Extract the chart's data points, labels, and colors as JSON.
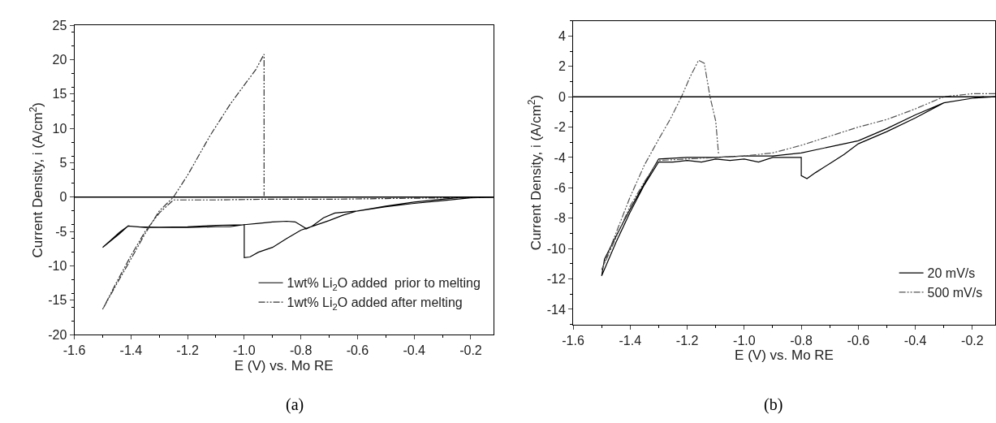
{
  "chart_data": [
    {
      "type": "line",
      "xlabel": "E (V) vs. Mo RE",
      "ylabel": "Current Density, i (A/cm$^{2}$)",
      "xlim": [
        -1.6,
        -0.12
      ],
      "xticks": [
        -1.6,
        -1.4,
        -1.2,
        {
          "value": -1.0,
          "label": "-1.0"
        },
        -0.8,
        -0.6,
        -0.4,
        -0.2
      ],
      "ylim": [
        -20,
        25
      ],
      "yticks": [
        -20,
        -15,
        -10,
        -5,
        0,
        5,
        10,
        15,
        20,
        25
      ],
      "legend": "bottom right",
      "marker": "none",
      "ref_lines": [
        {
          "axis": "y",
          "value": 0,
          "color": "#000000",
          "line_style": "solid"
        }
      ],
      "annotations": [
        "(a)"
      ],
      "series": [
        {
          "name": "1wt% Li$_{2}$O added  prior to melting",
          "color": "#000000",
          "line_style": "solid",
          "x": [
            -0.12,
            -0.2,
            -0.3,
            -0.4,
            -0.5,
            -0.6,
            -0.65,
            -0.7,
            -0.75,
            -0.8,
            -0.85,
            -0.9,
            -0.95,
            -0.98,
            -1.0,
            -1.0,
            -1.05,
            -1.1,
            -1.2,
            -1.3,
            -1.38,
            -1.41,
            -1.44,
            -1.47,
            -1.5,
            -1.47,
            -1.44,
            -1.41,
            -1.35,
            -1.2,
            -1.1,
            -1.0,
            -0.95,
            -0.9,
            -0.85,
            -0.82,
            -0.8,
            -0.78,
            -0.76,
            -0.72,
            -0.68,
            -0.6,
            -0.5,
            -0.4,
            -0.3,
            -0.23,
            -0.16
          ],
          "values": [
            0,
            -0.1,
            -0.5,
            -0.9,
            -1.4,
            -2.0,
            -2.6,
            -3.4,
            -4.1,
            -4.8,
            -6.0,
            -7.3,
            -8.0,
            -8.7,
            -8.8,
            -4.0,
            -4.3,
            -4.3,
            -4.4,
            -4.4,
            -4.3,
            -4.2,
            -5.3,
            -6.3,
            -7.3,
            -6.2,
            -5.1,
            -4.2,
            -4.4,
            -4.3,
            -4.1,
            -4.0,
            -3.8,
            -3.6,
            -3.5,
            -3.6,
            -4.1,
            -4.6,
            -4.2,
            -3.0,
            -2.3,
            -2.0,
            -1.3,
            -0.7,
            -0.3,
            0,
            0
          ]
        },
        {
          "name": "1wt% Li$_{2}$O added after melting",
          "color": "#333333",
          "line_style": "dashed",
          "x": [
            -0.12,
            -0.3,
            -0.5,
            -0.7,
            -0.93,
            -1.1,
            -1.25,
            -1.3,
            -1.35,
            -1.4,
            -1.45,
            -1.5,
            -1.45,
            -1.4,
            -1.35,
            -1.3,
            -1.25,
            -1.2,
            -1.12,
            -1.05,
            -1.0,
            -0.96,
            -0.93,
            -0.93
          ],
          "values": [
            0,
            -0.1,
            -0.2,
            -0.3,
            -0.3,
            -0.4,
            -0.4,
            -2.3,
            -5.0,
            -8.5,
            -12.3,
            -16.3,
            -12.6,
            -9.0,
            -5.3,
            -2.0,
            0,
            3.2,
            9.0,
            13.5,
            16.3,
            18.5,
            20.8,
            0.2
          ]
        }
      ]
    },
    {
      "type": "line",
      "xlabel": "E (V) vs. Mo RE",
      "ylabel": "Current Density, i (A/cm$^{2}$)",
      "xlim": [
        -1.6,
        -0.12
      ],
      "xticks": [
        -1.6,
        -1.4,
        -1.2,
        {
          "value": -1.0,
          "label": "-1.0"
        },
        -0.8,
        -0.6,
        -0.4,
        -0.2
      ],
      "ylim": [
        -15,
        5
      ],
      "yticks": [
        -14,
        -12,
        -10,
        -8,
        -6,
        -4,
        -2,
        0,
        2,
        4
      ],
      "legend": "bottom right",
      "marker": "none",
      "ref_lines": [
        {
          "axis": "y",
          "value": 0,
          "color": "#000000",
          "line_style": "solid"
        }
      ],
      "annotations": [
        "(b)"
      ],
      "series": [
        {
          "name": "20 mV/s",
          "color": "#000000",
          "line_style": "solid",
          "x": [
            -0.12,
            -0.2,
            -0.3,
            -0.4,
            -0.5,
            -0.6,
            -0.65,
            -0.7,
            -0.75,
            -0.78,
            -0.8,
            -0.8,
            -0.85,
            -0.9,
            -0.95,
            -1.0,
            -1.05,
            -1.1,
            -1.15,
            -1.2,
            -1.25,
            -1.3,
            -1.35,
            -1.4,
            -1.45,
            -1.5,
            -1.49,
            -1.45,
            -1.4,
            -1.35,
            -1.3,
            -1.2,
            -1.1,
            -1.0,
            -0.9,
            -0.8,
            -0.7,
            -0.6,
            -0.5,
            -0.4,
            -0.3,
            -0.2,
            -0.16
          ],
          "values": [
            0,
            -0.1,
            -0.4,
            -1.4,
            -2.3,
            -3.1,
            -3.8,
            -4.4,
            -5.0,
            -5.4,
            -5.2,
            -4.0,
            -4.0,
            -4.0,
            -4.3,
            -4.1,
            -4.2,
            -4.1,
            -4.3,
            -4.2,
            -4.3,
            -4.3,
            -5.8,
            -7.6,
            -9.6,
            -11.8,
            -10.7,
            -9.2,
            -7.4,
            -5.7,
            -4.1,
            -4.0,
            -4.0,
            -3.9,
            -3.9,
            -3.7,
            -3.3,
            -2.9,
            -2.1,
            -1.2,
            -0.4,
            -0.1,
            0
          ]
        },
        {
          "name": "500 mV/s",
          "color": "#555555",
          "line_style": "dashed",
          "x": [
            -0.12,
            -0.2,
            -0.3,
            -0.4,
            -0.5,
            -0.6,
            -0.7,
            -0.8,
            -0.9,
            -1.0,
            -1.1,
            -1.2,
            -1.3,
            -1.35,
            -1.4,
            -1.45,
            -1.5,
            -1.45,
            -1.4,
            -1.35,
            -1.3,
            -1.26,
            -1.22,
            -1.19,
            -1.16,
            -1.14,
            -1.12,
            -1.1,
            -1.09
          ],
          "values": [
            0.2,
            0.2,
            0,
            -0.8,
            -1.5,
            -2.0,
            -2.6,
            -3.2,
            -3.7,
            -3.9,
            -4.0,
            -4.1,
            -4.2,
            -5.6,
            -7.2,
            -9.3,
            -11.4,
            -9.0,
            -6.6,
            -4.5,
            -2.8,
            -1.5,
            0,
            1.3,
            2.4,
            2.2,
            0,
            -1.6,
            -3.8
          ]
        }
      ]
    }
  ]
}
